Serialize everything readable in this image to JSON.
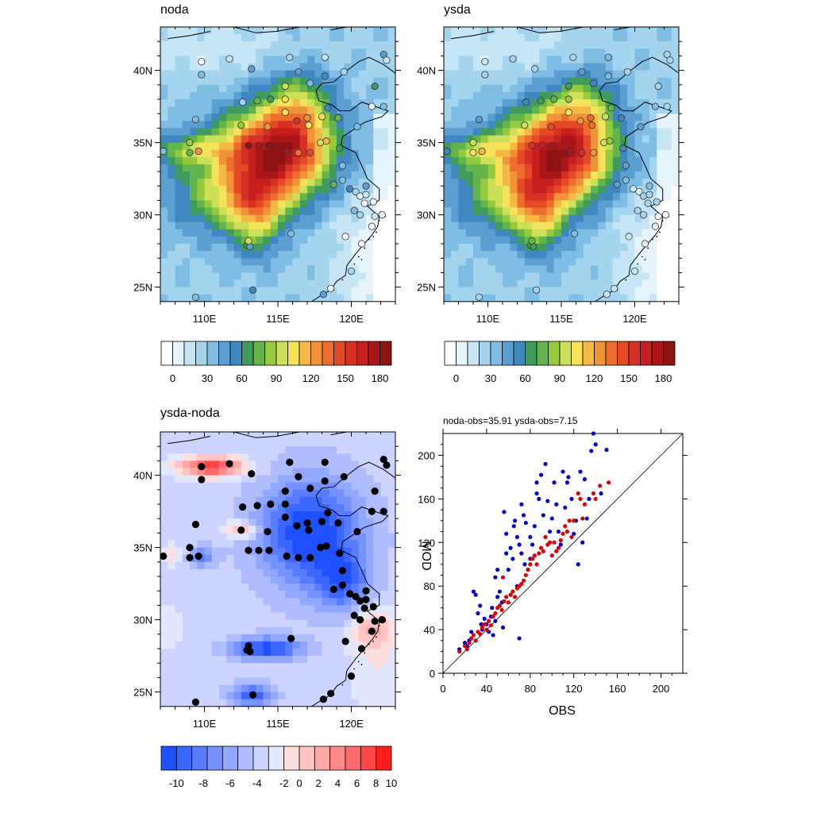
{
  "panels": {
    "noda": {
      "title": "noda"
    },
    "ysda": {
      "title": "ysda"
    },
    "diff": {
      "title": "ysda-noda"
    },
    "scatter": {
      "title": "noda-obs=35.91  ysda-obs=7.15",
      "xlabel": "OBS",
      "ylabel": "MOD"
    }
  },
  "map_axes": {
    "lon_ticks": [
      "110E",
      "115E",
      "120E"
    ],
    "lat_ticks": [
      "40N",
      "35N",
      "30N",
      "25N"
    ]
  },
  "colorbars": {
    "pm": {
      "labels": [
        "0",
        "30",
        "60",
        "90",
        "120",
        "150",
        "180"
      ],
      "colors": [
        "#ffffff",
        "#e6f5fc",
        "#c6e6f5",
        "#a5d4ee",
        "#7fbde4",
        "#5b9fd2",
        "#3f87c0",
        "#3e9b5c",
        "#62b44b",
        "#96c93d",
        "#cde05a",
        "#f7e35a",
        "#f6b845",
        "#f19338",
        "#ec6d2c",
        "#e34a25",
        "#d62f24",
        "#c5201f",
        "#aa1719",
        "#8d1212"
      ]
    },
    "diff": {
      "labels": [
        "-10",
        "-8",
        "-6",
        "-4",
        "-2",
        "0",
        "2",
        "4",
        "6",
        "8",
        "10"
      ],
      "colors": [
        "#1e50ff",
        "#3b66ff",
        "#587cff",
        "#7592ff",
        "#92a8ff",
        "#afbdff",
        "#ccd4ff",
        "#e3e8ff",
        "#ffe0e0",
        "#ffc4c4",
        "#ffa8a8",
        "#ff8a8a",
        "#ff6b6b",
        "#ff4747",
        "#ff1e1e"
      ]
    }
  },
  "chart_data": {
    "type": "scatter",
    "title": "noda-obs=35.91  ysda-obs=7.15",
    "xlabel": "OBS",
    "ylabel": "MOD",
    "xlim": [
      0,
      220
    ],
    "ylim": [
      0,
      220
    ],
    "x_ticks": [
      0,
      40,
      80,
      120,
      160,
      200
    ],
    "y_ticks": [
      0,
      40,
      80,
      120,
      160,
      200
    ],
    "one_to_one_line": true,
    "series": [
      {
        "color": "#0000cc",
        "points": [
          [
            15,
            22
          ],
          [
            20,
            28
          ],
          [
            22,
            25
          ],
          [
            24,
            30
          ],
          [
            26,
            38
          ],
          [
            28,
            75
          ],
          [
            30,
            72
          ],
          [
            32,
            55
          ],
          [
            34,
            62
          ],
          [
            35,
            45
          ],
          [
            36,
            40
          ],
          [
            38,
            50
          ],
          [
            40,
            45
          ],
          [
            42,
            38
          ],
          [
            44,
            52
          ],
          [
            45,
            60
          ],
          [
            46,
            35
          ],
          [
            48,
            48
          ],
          [
            48,
            88
          ],
          [
            50,
            70
          ],
          [
            50,
            95
          ],
          [
            52,
            75
          ],
          [
            54,
            65
          ],
          [
            55,
            42
          ],
          [
            56,
            148
          ],
          [
            58,
            110
          ],
          [
            58,
            128
          ],
          [
            60,
            95
          ],
          [
            62,
            115
          ],
          [
            62,
            72
          ],
          [
            64,
            105
          ],
          [
            65,
            135
          ],
          [
            66,
            140
          ],
          [
            68,
            125
          ],
          [
            68,
            80
          ],
          [
            70,
            118
          ],
          [
            70,
            32
          ],
          [
            72,
            155
          ],
          [
            72,
            110
          ],
          [
            74,
            145
          ],
          [
            75,
            100
          ],
          [
            76,
            138
          ],
          [
            78,
            95
          ],
          [
            80,
            105
          ],
          [
            80,
            125
          ],
          [
            82,
            118
          ],
          [
            84,
            135
          ],
          [
            86,
            165
          ],
          [
            86,
            175
          ],
          [
            88,
            160
          ],
          [
            90,
            182
          ],
          [
            92,
            145
          ],
          [
            94,
            192
          ],
          [
            96,
            158
          ],
          [
            98,
            130
          ],
          [
            100,
            142
          ],
          [
            102,
            175
          ],
          [
            104,
            155
          ],
          [
            106,
            130
          ],
          [
            108,
            118
          ],
          [
            110,
            185
          ],
          [
            112,
            152
          ],
          [
            114,
            175
          ],
          [
            115,
            180
          ],
          [
            118,
            160
          ],
          [
            120,
            128
          ],
          [
            122,
            140
          ],
          [
            124,
            100
          ],
          [
            126,
            185
          ],
          [
            128,
            120
          ],
          [
            130,
            178
          ],
          [
            132,
            142
          ],
          [
            134,
            160
          ],
          [
            136,
            204
          ],
          [
            138,
            220
          ],
          [
            140,
            210
          ],
          [
            145,
            165
          ],
          [
            150,
            205
          ]
        ]
      },
      {
        "color": "#dd0000",
        "points": [
          [
            15,
            20
          ],
          [
            20,
            25
          ],
          [
            22,
            22
          ],
          [
            24,
            28
          ],
          [
            26,
            32
          ],
          [
            28,
            35
          ],
          [
            30,
            30
          ],
          [
            32,
            38
          ],
          [
            34,
            36
          ],
          [
            36,
            42
          ],
          [
            38,
            45
          ],
          [
            40,
            40
          ],
          [
            42,
            48
          ],
          [
            44,
            44
          ],
          [
            46,
            52
          ],
          [
            48,
            55
          ],
          [
            50,
            60
          ],
          [
            52,
            62
          ],
          [
            54,
            58
          ],
          [
            55,
            88
          ],
          [
            56,
            66
          ],
          [
            58,
            70
          ],
          [
            60,
            65
          ],
          [
            62,
            72
          ],
          [
            64,
            75
          ],
          [
            66,
            70
          ],
          [
            68,
            78
          ],
          [
            70,
            80
          ],
          [
            72,
            82
          ],
          [
            74,
            85
          ],
          [
            76,
            90
          ],
          [
            78,
            95
          ],
          [
            80,
            100
          ],
          [
            82,
            105
          ],
          [
            84,
            108
          ],
          [
            86,
            100
          ],
          [
            88,
            110
          ],
          [
            90,
            115
          ],
          [
            92,
            112
          ],
          [
            94,
            125
          ],
          [
            96,
            118
          ],
          [
            98,
            120
          ],
          [
            100,
            108
          ],
          [
            102,
            120
          ],
          [
            104,
            112
          ],
          [
            106,
            115
          ],
          [
            108,
            122
          ],
          [
            110,
            128
          ],
          [
            112,
            135
          ],
          [
            114,
            130
          ],
          [
            116,
            140
          ],
          [
            118,
            125
          ],
          [
            120,
            140
          ],
          [
            124,
            165
          ],
          [
            126,
            160
          ],
          [
            128,
            142
          ],
          [
            130,
            155
          ],
          [
            138,
            165
          ],
          [
            140,
            160
          ],
          [
            144,
            172
          ],
          [
            152,
            175
          ]
        ]
      }
    ]
  }
}
